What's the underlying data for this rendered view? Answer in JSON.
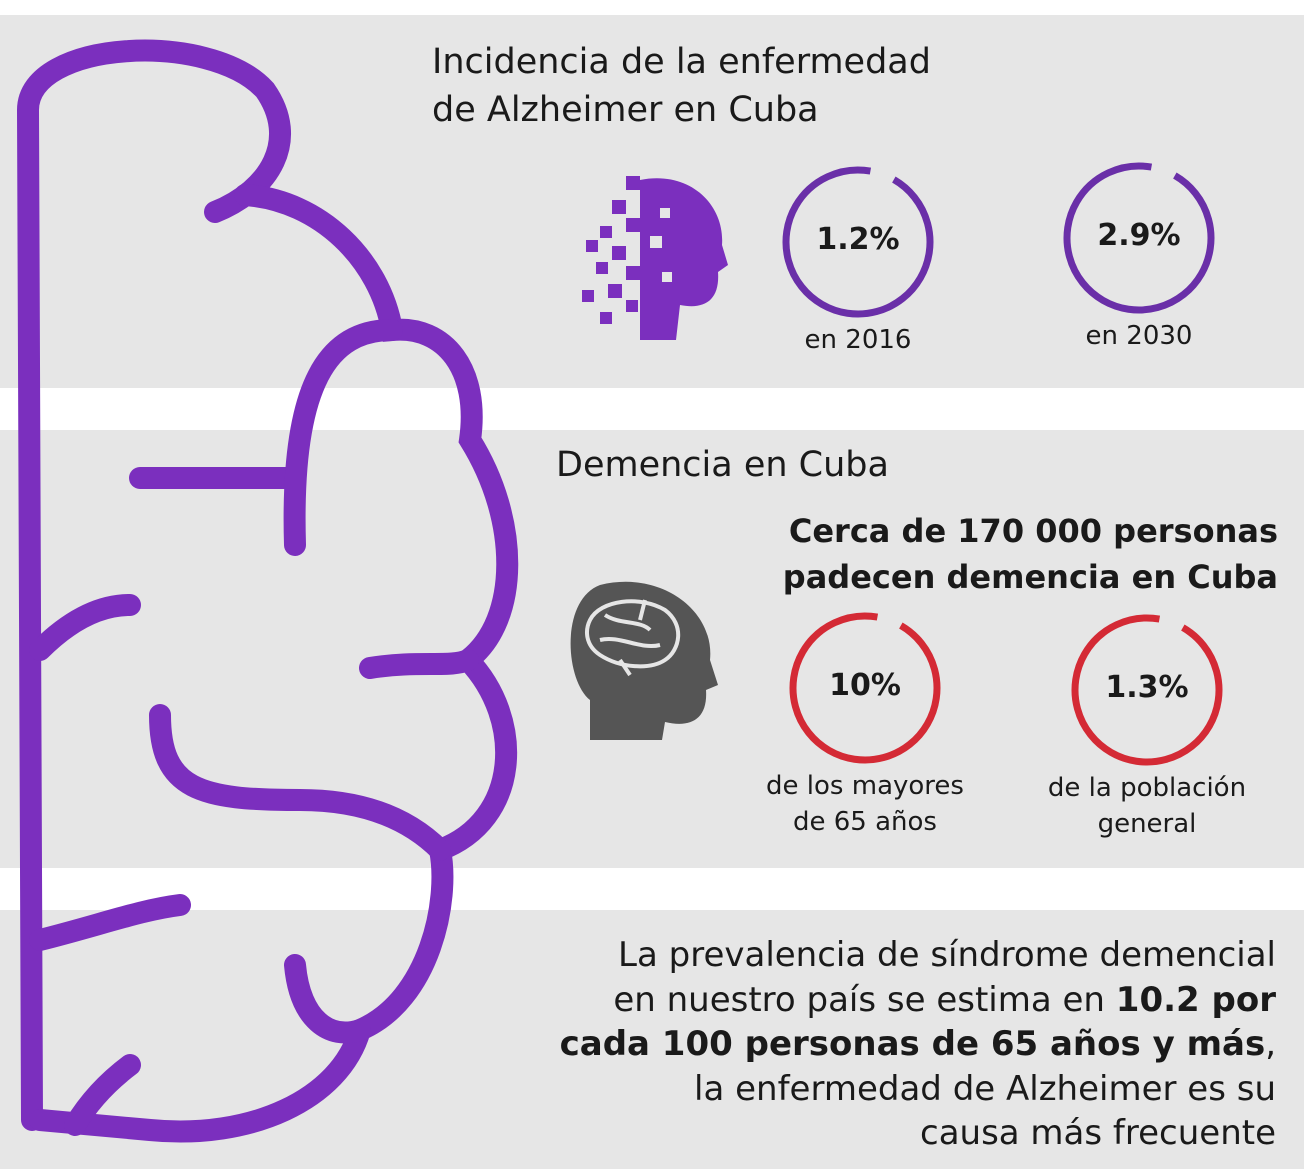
{
  "sections": [
    {
      "title_lines": [
        "Incidencia de la enfermedad",
        "de Alzheimer en Cuba"
      ],
      "stats": [
        {
          "value": "1.2%",
          "label_lines": [
            "en 2016"
          ]
        },
        {
          "value": "2.9%",
          "label_lines": [
            "en 2030"
          ]
        }
      ]
    },
    {
      "title_lines": [
        "Demencia en Cuba"
      ],
      "headline_lines": [
        "Cerca de 170 000 personas",
        "padecen demencia en Cuba"
      ],
      "stats": [
        {
          "value": "10%",
          "label_lines": [
            "de los mayores",
            "de 65 años"
          ]
        },
        {
          "value": "1.3%",
          "label_lines": [
            "de la población",
            "general"
          ]
        }
      ]
    },
    {
      "text_lines": [
        [
          {
            "text": "La prevalencia de síndrome demencial",
            "bold": false
          }
        ],
        [
          {
            "text": "en nuestro país se estima en ",
            "bold": false
          },
          {
            "text": "10.2 por",
            "bold": true
          }
        ],
        [
          {
            "text": "cada 100 personas de 65 años y más",
            "bold": true
          },
          {
            "text": ",",
            "bold": false
          }
        ],
        [
          {
            "text": "la enfermedad de Alzheimer es su",
            "bold": false
          }
        ],
        [
          {
            "text": "causa más frecuente",
            "bold": false
          }
        ]
      ]
    }
  ]
}
